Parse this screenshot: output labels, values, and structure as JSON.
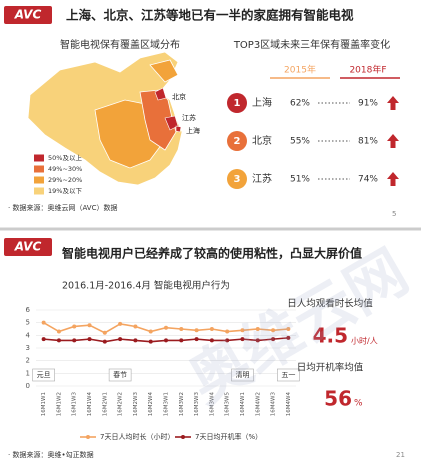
{
  "slide1": {
    "logo": "AVC",
    "title": "上海、北京、江苏等地已有一半的家庭拥有智能电视",
    "map_title": "智能电视保有覆盖区域分布",
    "map_labels": [
      "北京",
      "江苏",
      "上海"
    ],
    "legend": [
      {
        "label": "50%及以上",
        "color": "#c0272d"
      },
      {
        "label": "49%~30%",
        "color": "#e8703a"
      },
      {
        "label": "29%~20%",
        "color": "#f2a33a"
      },
      {
        "label": "19%及以下",
        "color": "#f8d27a"
      }
    ],
    "source": "· 数据来源：奥维云网（AVC）数据",
    "table_title": "TOP3区域未来三年保有覆盖率变化",
    "col_2015": "2015年",
    "col_2018": "2018年F",
    "rows": [
      {
        "rank": "1",
        "region": "上海",
        "v2015": "62%",
        "v2018": "91%"
      },
      {
        "rank": "2",
        "region": "北京",
        "v2015": "55%",
        "v2018": "81%"
      },
      {
        "rank": "3",
        "region": "江苏",
        "v2015": "51%",
        "v2018": "74%"
      }
    ],
    "page": "5"
  },
  "slide2": {
    "logo": "AVC",
    "title": "智能电视用户已经养成了较高的使用粘性，凸显大屏价值",
    "kpi1_label": "日人均观看时长均值",
    "kpi1_value": "4.5",
    "kpi1_unit": "小时/人",
    "kpi2_label": "日均开机率均值",
    "kpi2_value": "56",
    "kpi2_unit": "%",
    "source": "· 数据来源：奥维•勾正数据",
    "page": "21"
  },
  "watermark": "奥维云网",
  "chart_data": {
    "type": "line",
    "title": "2016.1月-2016.4月  智能电视用户行为",
    "categories": [
      "16M1W1",
      "16M1W2",
      "16M1W3",
      "16M1W4",
      "16M2W1",
      "16M2W2",
      "16M2W3",
      "16M2W4",
      "16M3W1",
      "16M3W2",
      "16M3W3",
      "16M3W4",
      "16M3W5",
      "16M4W1",
      "16M4W2",
      "16M4W3",
      "16M4W4"
    ],
    "series": [
      {
        "name": "7天日人均时长（小时）",
        "color": "#f4a460",
        "values": [
          5.0,
          4.3,
          4.7,
          4.8,
          4.2,
          4.9,
          4.7,
          4.3,
          4.6,
          4.5,
          4.4,
          4.5,
          4.3,
          4.4,
          4.5,
          4.4,
          4.5
        ]
      },
      {
        "name": "7天日均开机率（%）",
        "color": "#9b1b1f",
        "values": [
          3.7,
          3.6,
          3.6,
          3.7,
          3.5,
          3.7,
          3.6,
          3.5,
          3.6,
          3.6,
          3.7,
          3.6,
          3.6,
          3.7,
          3.6,
          3.7,
          3.8
        ]
      }
    ],
    "annotations": [
      {
        "text": "元旦",
        "category": "16M1W1"
      },
      {
        "text": "春节",
        "category": "16M2W2"
      },
      {
        "text": "清明",
        "category": "16M4W1"
      },
      {
        "text": "五一",
        "category": "16M4W4"
      }
    ],
    "ylim": [
      0,
      6
    ],
    "yticks": [
      0,
      1,
      2,
      3,
      4,
      5,
      6
    ],
    "grid": true
  }
}
